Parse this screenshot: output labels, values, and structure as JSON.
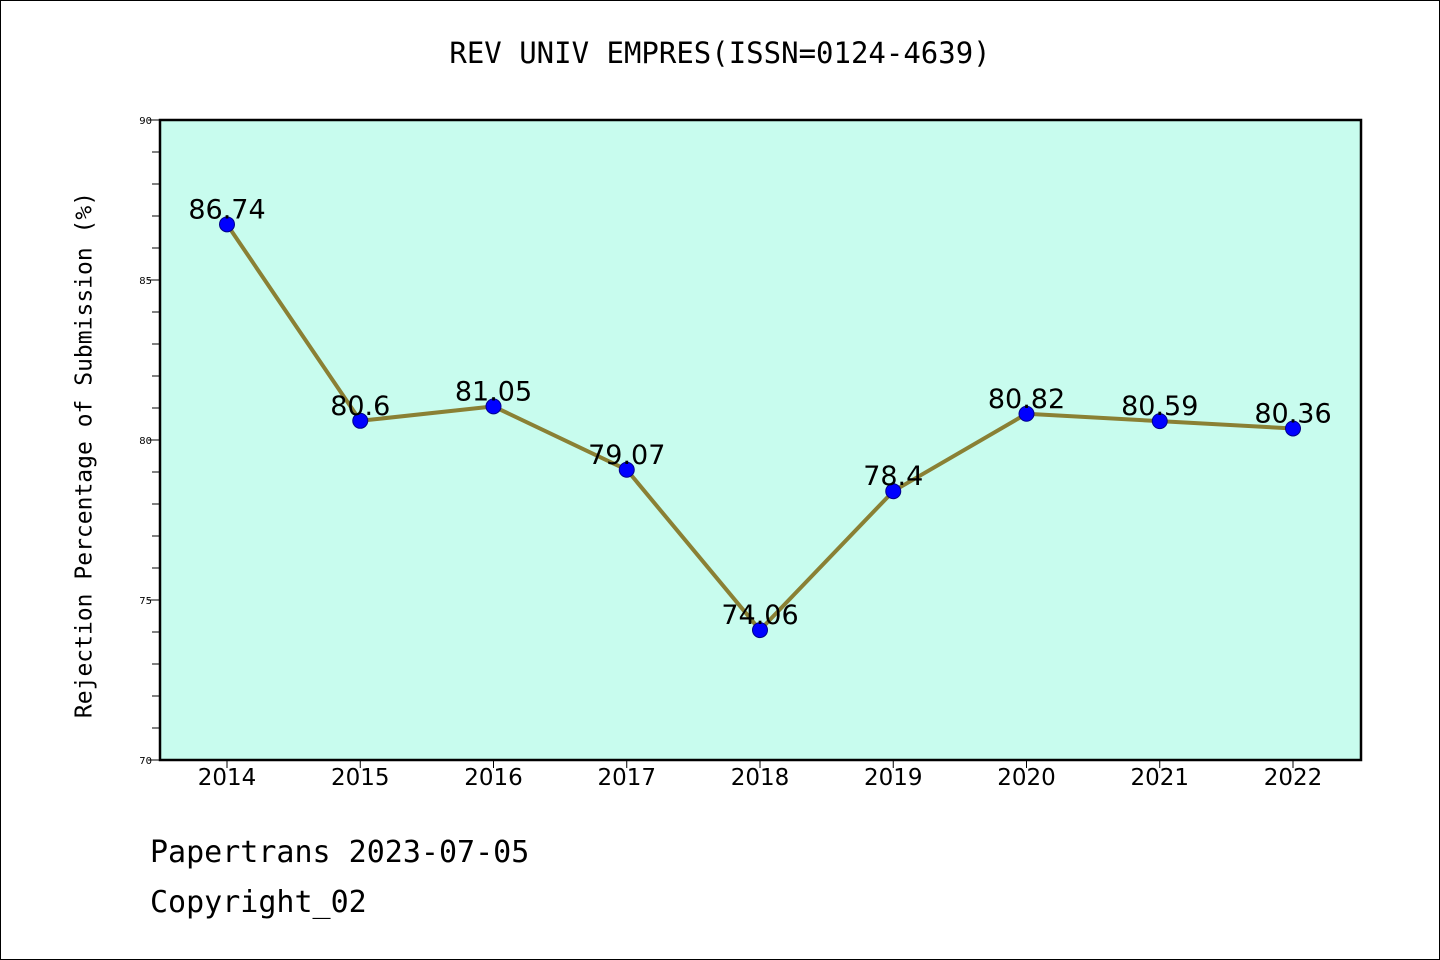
{
  "chart_data": {
    "type": "line",
    "title": "REV UNIV EMPRES(ISSN=0124-4639)",
    "xlabel": "",
    "ylabel": "Rejection Percentage of Submission (%)",
    "x": [
      "2014",
      "2015",
      "2016",
      "2017",
      "2018",
      "2019",
      "2020",
      "2021",
      "2022"
    ],
    "series": [
      {
        "values": [
          86.74,
          80.6,
          81.05,
          79.07,
          74.06,
          78.4,
          80.82,
          80.59,
          80.36
        ]
      }
    ],
    "data_labels": [
      "86.74",
      "80.6",
      "81.05",
      "79.07",
      "74.06",
      "78.4",
      "80.82",
      "80.59",
      "80.36"
    ],
    "ylim": [
      70,
      90
    ],
    "yticks": [
      "70",
      "75",
      "80",
      "85",
      "90"
    ],
    "grid": false,
    "legend": "none",
    "colors": {
      "plot_background": "#c8fcee",
      "line": "#8a8034",
      "marker_fill": "#0000ff",
      "marker_edge": "#00008b"
    }
  },
  "footer": {
    "line1": "Papertrans 2023-07-05",
    "line2": "Copyright_02"
  }
}
